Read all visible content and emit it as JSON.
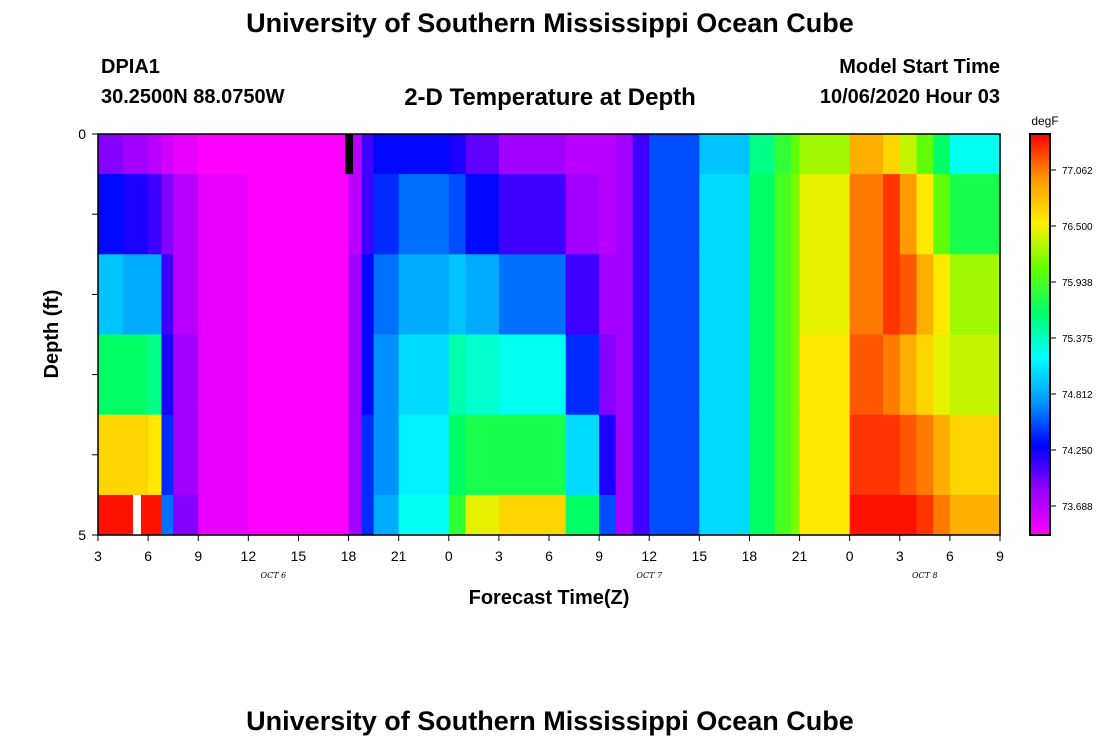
{
  "header": {
    "main_title": "University of Southern Mississippi Ocean Cube",
    "station_id": "DPIA1",
    "coords": "30.2500N 88.0750W",
    "plot_title": "2-D Temperature at Depth",
    "model_start_label": "Model Start Time",
    "model_start_value": "10/06/2020 Hour 03"
  },
  "footer": {
    "title": "University of Southern Mississippi Ocean Cube"
  },
  "chart_data": {
    "type": "heatmap",
    "title": "2-D Temperature at Depth",
    "xlabel": "Forecast Time(Z)",
    "ylabel": "Depth (ft)",
    "x_tick_labels": [
      "3",
      "6",
      "9",
      "12",
      "15",
      "18",
      "21",
      "0",
      "3",
      "6",
      "9",
      "12",
      "15",
      "18",
      "21",
      "0",
      "3",
      "6",
      "9"
    ],
    "y_tick_labels": [
      "0",
      "5"
    ],
    "date_labels": [
      {
        "text": "OCT 6",
        "tick_index": 3.5
      },
      {
        "text": "OCT 7",
        "tick_index": 11
      },
      {
        "text": "OCT 8",
        "tick_index": 16.5
      }
    ],
    "colorbar": {
      "unit": "degF",
      "ticks": [
        "77.062",
        "76.500",
        "75.938",
        "75.375",
        "74.812",
        "74.250",
        "73.688"
      ],
      "range": [
        73.4,
        77.35
      ],
      "colors": [
        "#ff00ff",
        "#9900ff",
        "#0000ff",
        "#0099ff",
        "#00ffff",
        "#00ff66",
        "#66ff00",
        "#ffee00",
        "#ff9900",
        "#ff0000"
      ]
    },
    "depth_bands": [
      0,
      0.5,
      1.5,
      2.5,
      3.5,
      4.5
    ],
    "time_hours": [
      0,
      1.5,
      3,
      3.8,
      4.5,
      6,
      9,
      12,
      14.5,
      15,
      15.8,
      16.5,
      18,
      21,
      22,
      24,
      28,
      30,
      31,
      32,
      33,
      36,
      39,
      40.5,
      41.5,
      42,
      45,
      47,
      48,
      49,
      50,
      51,
      54
    ],
    "values": [
      [
        73.9,
        73.8,
        73.7,
        73.6,
        73.5,
        73.4,
        73.4,
        73.4,
        73.4,
        73.7,
        74.1,
        74.3,
        74.3,
        74.2,
        74.0,
        73.8,
        73.7,
        73.7,
        73.8,
        74.1,
        74.5,
        74.9,
        75.5,
        75.8,
        76.0,
        76.2,
        76.8,
        76.6,
        76.3,
        76.0,
        75.6,
        75.2,
        74.9
      ],
      [
        74.3,
        74.2,
        74.1,
        73.9,
        73.7,
        73.5,
        73.4,
        73.4,
        73.4,
        73.7,
        74.1,
        74.4,
        74.6,
        74.5,
        74.3,
        74.1,
        73.8,
        73.7,
        73.8,
        74.1,
        74.5,
        75.0,
        75.6,
        75.9,
        76.1,
        76.4,
        77.0,
        77.2,
        76.9,
        76.5,
        76.0,
        75.7,
        75.7
      ],
      [
        74.9,
        74.8,
        74.8,
        74.1,
        73.7,
        73.5,
        73.4,
        73.4,
        73.4,
        73.8,
        74.3,
        74.6,
        74.8,
        74.9,
        74.8,
        74.6,
        74.1,
        73.8,
        73.8,
        74.1,
        74.5,
        75.0,
        75.6,
        75.9,
        76.1,
        76.4,
        77.0,
        77.2,
        77.1,
        76.8,
        76.5,
        76.2,
        76.0
      ],
      [
        75.6,
        75.6,
        75.5,
        74.2,
        73.8,
        73.5,
        73.4,
        73.4,
        73.4,
        73.8,
        74.3,
        74.7,
        75.0,
        75.4,
        75.3,
        75.2,
        74.4,
        73.9,
        73.8,
        74.1,
        74.5,
        75.0,
        75.6,
        75.9,
        76.1,
        76.5,
        77.1,
        77.0,
        76.8,
        76.6,
        76.4,
        76.3,
        76.4
      ],
      [
        76.6,
        76.6,
        76.5,
        74.4,
        73.8,
        73.5,
        73.4,
        73.4,
        73.4,
        73.8,
        74.4,
        74.7,
        75.1,
        75.6,
        75.7,
        75.7,
        75.0,
        74.2,
        73.8,
        74.1,
        74.5,
        75.0,
        75.6,
        75.9,
        76.1,
        76.5,
        77.2,
        77.2,
        77.1,
        77.0,
        76.8,
        76.6,
        76.4
      ],
      [
        77.3,
        77.3,
        77.3,
        74.6,
        73.9,
        73.5,
        73.4,
        73.4,
        73.4,
        73.8,
        74.4,
        74.8,
        75.2,
        75.8,
        76.4,
        76.6,
        75.6,
        74.5,
        73.8,
        74.1,
        74.5,
        75.0,
        75.6,
        75.9,
        76.1,
        76.5,
        77.3,
        77.3,
        77.3,
        77.2,
        77.0,
        76.8,
        76.6
      ]
    ],
    "special_cells": [
      {
        "hour": 15,
        "depth_from": 0,
        "depth_to": 0.5,
        "value": "missing",
        "color": "#000000"
      },
      {
        "hour": 2.3,
        "depth_from": 4.5,
        "depth_to": 5,
        "value": "missing",
        "color": "#ffffff"
      }
    ]
  }
}
